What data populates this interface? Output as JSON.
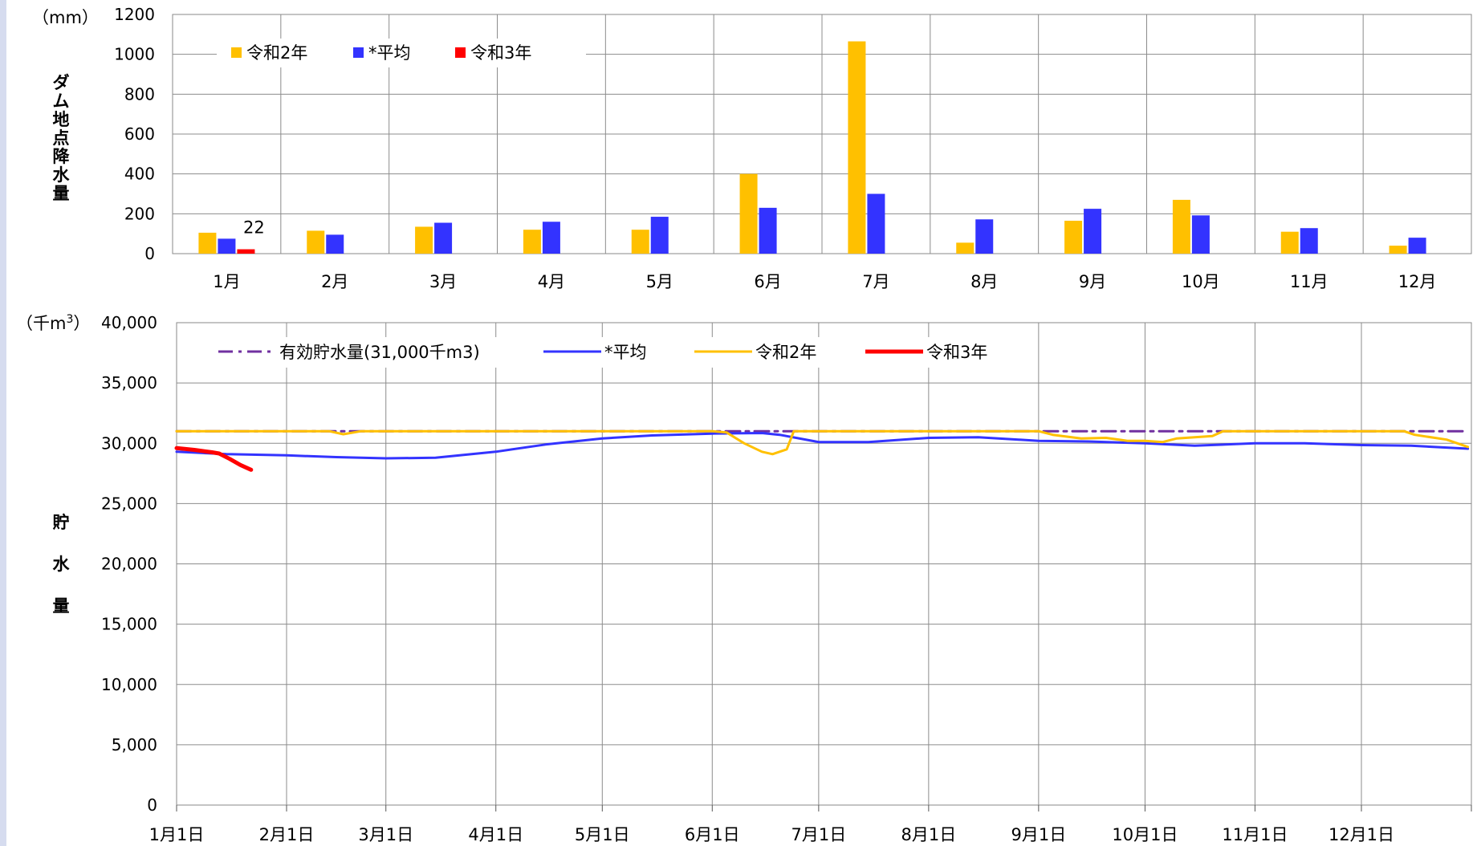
{
  "chart_data": [
    {
      "type": "bar",
      "unit_label": "（mm）",
      "ylabel": "ダム地点降水量",
      "ylim": [
        0,
        1200
      ],
      "yticks": [
        0,
        200,
        400,
        600,
        800,
        1000,
        1200
      ],
      "grid": true,
      "legend_position": "top-left",
      "categories": [
        "1月",
        "2月",
        "3月",
        "4月",
        "5月",
        "6月",
        "7月",
        "8月",
        "9月",
        "10月",
        "11月",
        "12月"
      ],
      "series": [
        {
          "name": "令和2年",
          "color": "#ffc000",
          "values": [
            105,
            115,
            135,
            120,
            120,
            400,
            1065,
            55,
            165,
            270,
            110,
            40
          ]
        },
        {
          "name": "*平均",
          "color": "#3333ff",
          "values": [
            75,
            95,
            155,
            160,
            185,
            230,
            300,
            172,
            225,
            192,
            128,
            80
          ]
        },
        {
          "name": "令和3年",
          "color": "#ff0000",
          "values": [
            22,
            null,
            null,
            null,
            null,
            null,
            null,
            null,
            null,
            null,
            null,
            null
          ]
        }
      ],
      "data_labels": [
        {
          "series": "令和3年",
          "category": "1月",
          "text": "22"
        }
      ]
    },
    {
      "type": "line",
      "unit_label": "（千m",
      "unit_sup": "3",
      "unit_close": "）",
      "ylabel": "貯水量",
      "ylim": [
        0,
        40000
      ],
      "yticks": [
        0,
        5000,
        10000,
        15000,
        20000,
        25000,
        30000,
        35000,
        40000
      ],
      "ytick_labels": [
        "0",
        "5,000",
        "10,000",
        "15,000",
        "20,000",
        "25,000",
        "30,000",
        "35,000",
        "40,000"
      ],
      "grid": true,
      "legend_position": "top-left",
      "xlim": [
        "1月1日",
        "12月31日"
      ],
      "xticks": [
        "1月1日",
        "2月1日",
        "3月1日",
        "4月1日",
        "5月1日",
        "6月1日",
        "7月1日",
        "8月1日",
        "9月1日",
        "10月1日",
        "11月1日",
        "12月1日"
      ],
      "series": [
        {
          "name": "有効貯水量(31,000千m3)",
          "color": "#7030a0",
          "style": "dashdot",
          "points": [
            [
              "1月1日",
              31000
            ],
            [
              "12月31日",
              31000
            ]
          ]
        },
        {
          "name": "*平均",
          "color": "#3333ff",
          "style": "solid",
          "points": [
            [
              "1月1日",
              29300
            ],
            [
              "1月15日",
              29100
            ],
            [
              "2月1日",
              29000
            ],
            [
              "2月15日",
              28850
            ],
            [
              "3月1日",
              28750
            ],
            [
              "3月15日",
              28800
            ],
            [
              "4月1日",
              29300
            ],
            [
              "4月15日",
              29900
            ],
            [
              "5月1日",
              30400
            ],
            [
              "5月15日",
              30650
            ],
            [
              "6月1日",
              30800
            ],
            [
              "6月15日",
              30850
            ],
            [
              "6月20日",
              30700
            ],
            [
              "7月1日",
              30100
            ],
            [
              "7月15日",
              30100
            ],
            [
              "8月1日",
              30450
            ],
            [
              "8月15日",
              30500
            ],
            [
              "9月1日",
              30200
            ],
            [
              "9月15日",
              30150
            ],
            [
              "10月1日",
              30000
            ],
            [
              "10月15日",
              29800
            ],
            [
              "11月1日",
              30000
            ],
            [
              "11月15日",
              30000
            ],
            [
              "12月1日",
              29850
            ],
            [
              "12月15日",
              29800
            ],
            [
              "12月31日",
              29550
            ]
          ]
        },
        {
          "name": "令和2年",
          "color": "#ffc000",
          "style": "solid",
          "points": [
            [
              "1月1日",
              31000
            ],
            [
              "2月13日",
              31000
            ],
            [
              "2月17日",
              30750
            ],
            [
              "2月22日",
              31000
            ],
            [
              "6月1日",
              31000
            ],
            [
              "6月5日",
              30900
            ],
            [
              "6月10日",
              30000
            ],
            [
              "6月15日",
              29300
            ],
            [
              "6月18日",
              29100
            ],
            [
              "6月22日",
              29500
            ],
            [
              "6月24日",
              31000
            ],
            [
              "9月1日",
              31000
            ],
            [
              "9月5日",
              30700
            ],
            [
              "9月13日",
              30400
            ],
            [
              "9月20日",
              30450
            ],
            [
              "9月26日",
              30200
            ],
            [
              "10月1日",
              30200
            ],
            [
              "10月6日",
              30100
            ],
            [
              "10月10日",
              30400
            ],
            [
              "10月20日",
              30600
            ],
            [
              "10月23日",
              31000
            ],
            [
              "12月13日",
              31000
            ],
            [
              "12月16日",
              30700
            ],
            [
              "12月25日",
              30300
            ],
            [
              "12月31日",
              29700
            ]
          ]
        },
        {
          "name": "令和3年",
          "color": "#ff0000",
          "style": "solid",
          "width": 5,
          "points": [
            [
              "1月1日",
              29600
            ],
            [
              "1月6日",
              29450
            ],
            [
              "1月11日",
              29250
            ],
            [
              "1月13日",
              29150
            ],
            [
              "1月16日",
              28700
            ],
            [
              "1月19日",
              28200
            ],
            [
              "1月22日",
              27800
            ]
          ]
        }
      ]
    }
  ]
}
